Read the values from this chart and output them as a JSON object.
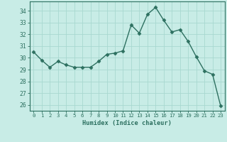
{
  "x": [
    0,
    1,
    2,
    3,
    4,
    5,
    6,
    7,
    8,
    9,
    10,
    11,
    12,
    13,
    14,
    15,
    16,
    17,
    18,
    19,
    20,
    21,
    22,
    23
  ],
  "y": [
    30.5,
    29.8,
    29.2,
    29.7,
    29.4,
    29.2,
    29.2,
    29.2,
    29.7,
    30.3,
    30.4,
    30.6,
    32.8,
    32.1,
    33.7,
    34.3,
    33.2,
    32.2,
    32.4,
    31.4,
    30.1,
    28.9,
    28.6,
    25.9
  ],
  "line_color": "#2d7060",
  "marker": "D",
  "marker_size": 2.5,
  "bg_color": "#c8ece6",
  "grid_color": "#a8d8d0",
  "xlabel": "Humidex (Indice chaleur)",
  "xlim": [
    -0.5,
    23.5
  ],
  "ylim": [
    25.5,
    34.8
  ],
  "yticks": [
    26,
    27,
    28,
    29,
    30,
    31,
    32,
    33,
    34
  ],
  "xticks": [
    0,
    1,
    2,
    3,
    4,
    5,
    6,
    7,
    8,
    9,
    10,
    11,
    12,
    13,
    14,
    15,
    16,
    17,
    18,
    19,
    20,
    21,
    22,
    23
  ],
  "tick_color": "#2d7060",
  "label_color": "#2d7060",
  "spine_color": "#2d7060"
}
